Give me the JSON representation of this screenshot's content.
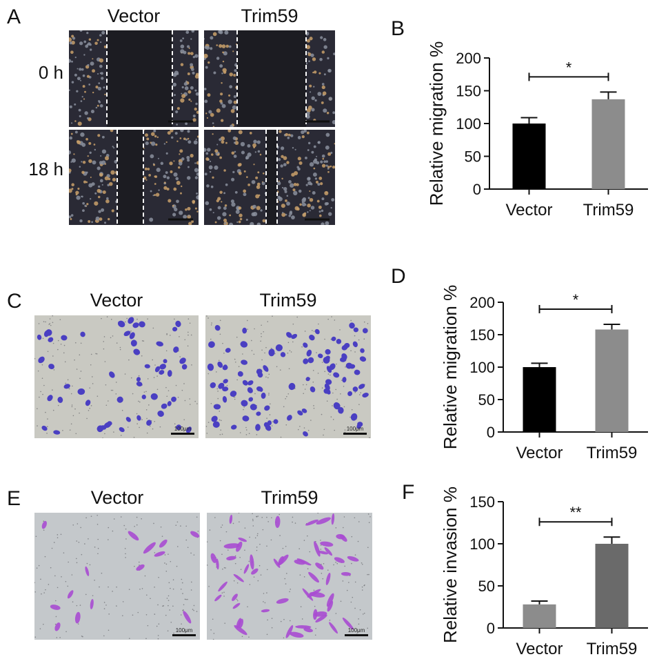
{
  "panels": {
    "A": {
      "label": "A",
      "columns": [
        "Vector",
        "Trim59"
      ],
      "rows": [
        "0 h",
        "18 h"
      ]
    },
    "C": {
      "label": "C",
      "columns": [
        "Vector",
        "Trim59"
      ],
      "scale": "100μm"
    },
    "E": {
      "label": "E",
      "columns": [
        "Vector",
        "Trim59"
      ],
      "scale": "100μm"
    },
    "B": {
      "label": "B"
    },
    "D": {
      "label": "D"
    },
    "F": {
      "label": "F"
    }
  },
  "colors": {
    "vector_bar": "#000000",
    "trim59_bar_B": "#8c8c8c",
    "trim59_bar_D": "#8c8c8c",
    "vector_bar_F": "#8c8c8c",
    "trim59_bar_F": "#6a6a6a",
    "crystal_violet_C": "#4a3fc2",
    "crystal_violet_E": "#a94bd1",
    "phase_bg": "#2a2a35"
  },
  "chart_data": [
    {
      "panel": "B",
      "type": "bar",
      "categories": [
        "Vector",
        "Trim59"
      ],
      "values": [
        100,
        137
      ],
      "errors": [
        9,
        11
      ],
      "ylabel": "Relative migration %",
      "ylim": [
        0,
        200
      ],
      "yticks": [
        0,
        50,
        100,
        150,
        200
      ],
      "significance": "*",
      "colors": [
        "#000000",
        "#8c8c8c"
      ]
    },
    {
      "panel": "D",
      "type": "bar",
      "categories": [
        "Vector",
        "Trim59"
      ],
      "values": [
        100,
        158
      ],
      "errors": [
        6,
        8
      ],
      "ylabel": "Relative migration %",
      "ylim": [
        0,
        200
      ],
      "yticks": [
        0,
        50,
        100,
        150,
        200
      ],
      "significance": "*",
      "colors": [
        "#000000",
        "#8c8c8c"
      ]
    },
    {
      "panel": "F",
      "type": "bar",
      "categories": [
        "Vector",
        "Trim59"
      ],
      "values": [
        28,
        100
      ],
      "errors": [
        4,
        8
      ],
      "ylabel": "Relative invasion %",
      "ylim": [
        0,
        150
      ],
      "yticks": [
        0,
        50,
        100,
        150
      ],
      "significance": "**",
      "colors": [
        "#8c8c8c",
        "#6a6a6a"
      ]
    }
  ]
}
